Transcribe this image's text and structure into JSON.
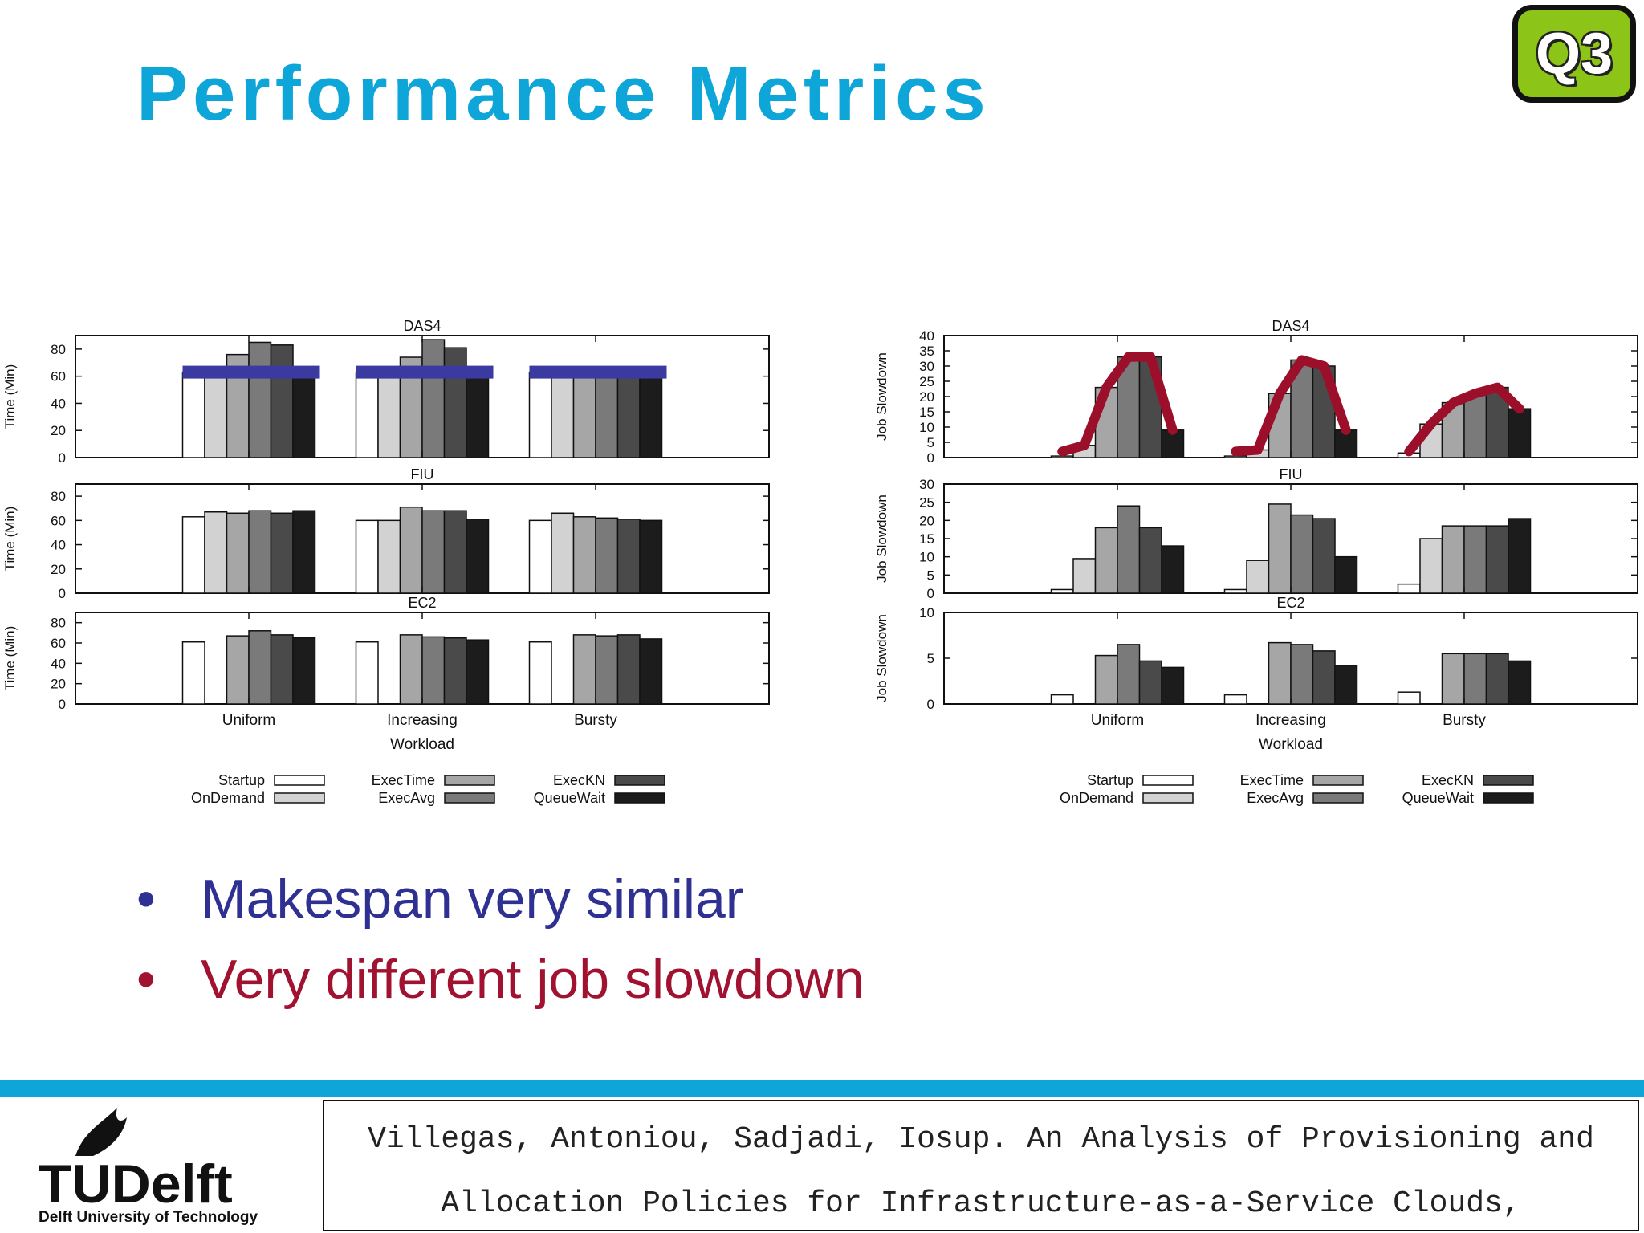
{
  "slide": {
    "title": "Performance Metrics",
    "badge": "Q3",
    "bullets": [
      "Makespan very similar",
      "Very different job slowdown"
    ],
    "colors": {
      "title": "#0ea5d8",
      "bullet1": "#2e3192",
      "bullet2": "#a0122f",
      "accent_bar": "#0ea5d8",
      "badge": "#8cc417",
      "makespan_marker": "#3a3aa0",
      "slowdown_marker": "#9c0f2a"
    },
    "footer": {
      "logo_text": "TUDelft",
      "logo_icon": "flame-icon",
      "university": "Delft University of Technology",
      "citation_line1": "Villegas, Antoniou, Sadjadi, Iosup. An Analysis of Provisioning and",
      "citation_line2": "Allocation Policies for Infrastructure-as-a-Service Clouds,"
    }
  },
  "chart_data": [
    {
      "type": "bar",
      "title": "DAS4",
      "xlabel": "",
      "ylabel": "Time (Min)",
      "ylim": [
        0,
        90
      ],
      "yticks": [
        0,
        20,
        40,
        60,
        80
      ],
      "categories": [
        "Uniform",
        "Increasing",
        "Bursty"
      ],
      "series": [
        {
          "name": "Startup",
          "values": [
            63,
            63,
            63
          ]
        },
        {
          "name": "OnDemand",
          "values": [
            63,
            63,
            63
          ]
        },
        {
          "name": "ExecTime",
          "values": [
            76,
            74,
            63
          ]
        },
        {
          "name": "ExecAvg",
          "values": [
            85,
            87,
            63
          ]
        },
        {
          "name": "ExecKN",
          "values": [
            83,
            81,
            63
          ]
        },
        {
          "name": "QueueWait",
          "values": [
            63,
            63,
            63
          ]
        }
      ],
      "annotation": "makespan-marker"
    },
    {
      "type": "bar",
      "title": "FIU",
      "xlabel": "",
      "ylabel": "Time (Min)",
      "ylim": [
        0,
        90
      ],
      "yticks": [
        0,
        20,
        40,
        60,
        80
      ],
      "categories": [
        "Uniform",
        "Increasing",
        "Bursty"
      ],
      "series": [
        {
          "name": "Startup",
          "values": [
            63,
            60,
            60
          ]
        },
        {
          "name": "OnDemand",
          "values": [
            67,
            60,
            66
          ]
        },
        {
          "name": "ExecTime",
          "values": [
            66,
            71,
            63
          ]
        },
        {
          "name": "ExecAvg",
          "values": [
            68,
            68,
            62
          ]
        },
        {
          "name": "ExecKN",
          "values": [
            66,
            68,
            61
          ]
        },
        {
          "name": "QueueWait",
          "values": [
            68,
            61,
            60
          ]
        }
      ]
    },
    {
      "type": "bar",
      "title": "EC2",
      "xlabel": "Workload",
      "ylabel": "Time (Min)",
      "ylim": [
        0,
        90
      ],
      "yticks": [
        0,
        20,
        40,
        60,
        80
      ],
      "categories": [
        "Uniform",
        "Increasing",
        "Bursty"
      ],
      "series": [
        {
          "name": "Startup",
          "values": [
            61,
            61,
            61
          ]
        },
        {
          "name": "OnDemand",
          "values": [
            0,
            0,
            0
          ]
        },
        {
          "name": "ExecTime",
          "values": [
            67,
            68,
            68
          ]
        },
        {
          "name": "ExecAvg",
          "values": [
            72,
            66,
            67
          ]
        },
        {
          "name": "ExecKN",
          "values": [
            68,
            65,
            68
          ]
        },
        {
          "name": "QueueWait",
          "values": [
            65,
            63,
            64
          ]
        }
      ]
    },
    {
      "type": "bar",
      "title": "DAS4",
      "xlabel": "",
      "ylabel": "Job Slowdown",
      "ylim": [
        0,
        40
      ],
      "yticks": [
        0,
        5,
        10,
        15,
        20,
        25,
        30,
        35,
        40
      ],
      "categories": [
        "Uniform",
        "Increasing",
        "Bursty"
      ],
      "series": [
        {
          "name": "Startup",
          "values": [
            0.5,
            0.5,
            1.5
          ]
        },
        {
          "name": "OnDemand",
          "values": [
            4,
            2.5,
            11
          ]
        },
        {
          "name": "ExecTime",
          "values": [
            23,
            21,
            18
          ]
        },
        {
          "name": "ExecAvg",
          "values": [
            33,
            32,
            21
          ]
        },
        {
          "name": "ExecKN",
          "values": [
            33,
            30,
            23
          ]
        },
        {
          "name": "QueueWait",
          "values": [
            9,
            9,
            16
          ]
        }
      ],
      "annotation": "slowdown-marker"
    },
    {
      "type": "bar",
      "title": "FIU",
      "xlabel": "",
      "ylabel": "Job Slowdown",
      "ylim": [
        0,
        30
      ],
      "yticks": [
        0,
        5,
        10,
        15,
        20,
        25,
        30
      ],
      "categories": [
        "Uniform",
        "Increasing",
        "Bursty"
      ],
      "series": [
        {
          "name": "Startup",
          "values": [
            1,
            1,
            2.5
          ]
        },
        {
          "name": "OnDemand",
          "values": [
            9.5,
            9,
            15
          ]
        },
        {
          "name": "ExecTime",
          "values": [
            18,
            24.5,
            18.5
          ]
        },
        {
          "name": "ExecAvg",
          "values": [
            24,
            21.5,
            18.5
          ]
        },
        {
          "name": "ExecKN",
          "values": [
            18,
            20.5,
            18.5
          ]
        },
        {
          "name": "QueueWait",
          "values": [
            13,
            10,
            20.5
          ]
        }
      ]
    },
    {
      "type": "bar",
      "title": "EC2",
      "xlabel": "Workload",
      "ylabel": "Job Slowdown",
      "ylim": [
        0,
        10
      ],
      "yticks": [
        0,
        5,
        10
      ],
      "categories": [
        "Uniform",
        "Increasing",
        "Bursty"
      ],
      "series": [
        {
          "name": "Startup",
          "values": [
            1,
            1,
            1.3
          ]
        },
        {
          "name": "OnDemand",
          "values": [
            0,
            0,
            0
          ]
        },
        {
          "name": "ExecTime",
          "values": [
            5.3,
            6.7,
            5.5
          ]
        },
        {
          "name": "ExecAvg",
          "values": [
            6.5,
            6.5,
            5.5
          ]
        },
        {
          "name": "ExecKN",
          "values": [
            4.7,
            5.8,
            5.5
          ]
        },
        {
          "name": "QueueWait",
          "values": [
            4,
            4.2,
            4.7
          ]
        }
      ]
    }
  ],
  "legend": {
    "placement": "bottom",
    "entries": [
      {
        "name": "Startup",
        "color": "#ffffff"
      },
      {
        "name": "OnDemand",
        "color": "#d2d2d2"
      },
      {
        "name": "ExecTime",
        "color": "#a6a6a6"
      },
      {
        "name": "ExecAvg",
        "color": "#7a7a7a"
      },
      {
        "name": "ExecKN",
        "color": "#4a4a4a"
      },
      {
        "name": "QueueWait",
        "color": "#1c1c1c"
      }
    ]
  }
}
